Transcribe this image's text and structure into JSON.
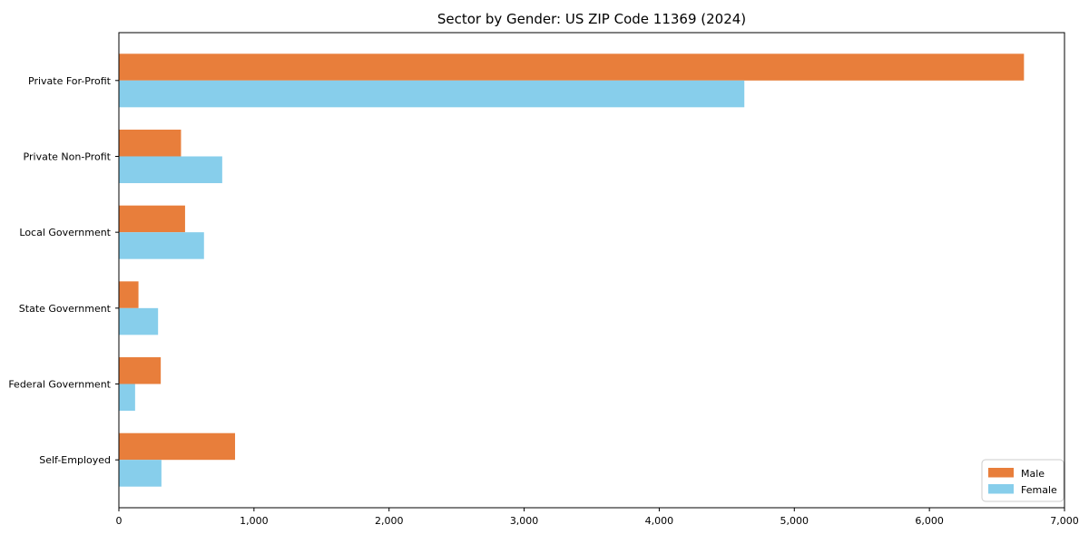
{
  "figure": {
    "background": "#ffffff"
  },
  "chart_data": {
    "type": "bar",
    "orientation": "horizontal",
    "title": "Sector by Gender: US ZIP Code 11369 (2024)",
    "categories": [
      "Private For-Profit",
      "Private Non-Profit",
      "Local Government",
      "State Government",
      "Federal Government",
      "Self-Employed"
    ],
    "series": [
      {
        "name": "Male",
        "color": "#e87e3b",
        "values": [
          6700,
          460,
          490,
          145,
          310,
          860
        ]
      },
      {
        "name": "Female",
        "color": "#87ceeb",
        "values": [
          4630,
          765,
          630,
          290,
          120,
          315
        ]
      }
    ],
    "xlabel": "",
    "ylabel": "",
    "xlim": [
      0,
      7000
    ],
    "xticks": [
      {
        "value": 0,
        "label": "0"
      },
      {
        "value": 1000,
        "label": "1,000"
      },
      {
        "value": 2000,
        "label": "2,000"
      },
      {
        "value": 3000,
        "label": "3,000"
      },
      {
        "value": 4000,
        "label": "4,000"
      },
      {
        "value": 5000,
        "label": "5,000"
      },
      {
        "value": 6000,
        "label": "6,000"
      },
      {
        "value": 7000,
        "label": "7,000"
      }
    ],
    "grid": false,
    "legend": {
      "position": "lower-right",
      "entries": [
        "Male",
        "Female"
      ],
      "border_color": "#cccccc",
      "background": "#ffffff"
    },
    "axis_color": "#000000",
    "text_color": "#000000"
  }
}
